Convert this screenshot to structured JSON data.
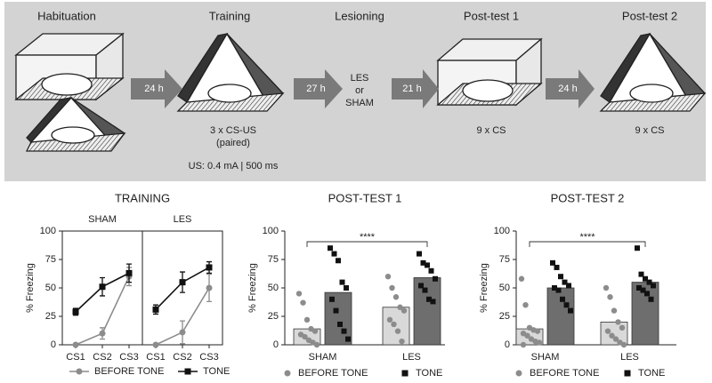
{
  "protocol": {
    "stages": [
      "Habituation",
      "Training",
      "Lesioning",
      "Post-test 1",
      "Post-test 2"
    ],
    "delays": [
      "24 h",
      "27 h",
      "21 h",
      "24 h"
    ],
    "training_notes": [
      "3 x CS-US",
      "(paired)",
      "US: 0.4 mA | 500 ms"
    ],
    "lesion_options": [
      "LES",
      "or",
      "SHAM"
    ],
    "posttest_notes": [
      "9 x CS",
      "9 x CS"
    ]
  },
  "chart_data": [
    {
      "type": "line",
      "title": "TRAINING",
      "subtitle": "SHAM",
      "ylabel": "% Freezing",
      "categories": [
        "CS1",
        "CS2",
        "CS3"
      ],
      "ylim": [
        0,
        100
      ],
      "yticks": [
        0,
        25,
        50,
        75,
        100
      ],
      "series": [
        {
          "name": "BEFORE TONE",
          "color": "#8c8c8c",
          "marker": "circle",
          "values": [
            0,
            10,
            60
          ],
          "errors": [
            0,
            5,
            8
          ]
        },
        {
          "name": "TONE",
          "color": "#111111",
          "marker": "square",
          "values": [
            29,
            51,
            63
          ],
          "errors": [
            3,
            8,
            8
          ]
        }
      ]
    },
    {
      "type": "line",
      "subtitle": "LES",
      "categories": [
        "CS1",
        "CS2",
        "CS3"
      ],
      "ylim": [
        0,
        100
      ],
      "series": [
        {
          "color": "#8c8c8c",
          "marker": "circle",
          "values": [
            0,
            11,
            50
          ],
          "errors": [
            0,
            10,
            12
          ]
        },
        {
          "color": "#111111",
          "marker": "square",
          "values": [
            31,
            55,
            68
          ],
          "errors": [
            4,
            9,
            5
          ]
        }
      ]
    },
    {
      "type": "bar",
      "title": "POST-TEST 1",
      "ylabel": "% Freezing",
      "annotation": "****",
      "categories": [
        "SHAM",
        "LES"
      ],
      "ylim": [
        0,
        100
      ],
      "yticks": [
        0,
        25,
        50,
        75,
        100
      ],
      "series": [
        {
          "name": "BEFORE TONE",
          "color": "#d9d9d9",
          "point_color": "#8c8c8c",
          "marker": "circle",
          "values": [
            14,
            33
          ],
          "points": [
            [
              45,
              37,
              22,
              14,
              12,
              9,
              7,
              4,
              2,
              0
            ],
            [
              60,
              50,
              42,
              33,
              30,
              22,
              18,
              12,
              3
            ]
          ]
        },
        {
          "name": "TONE",
          "color": "#6e6e6e",
          "point_color": "#111111",
          "marker": "square",
          "values": [
            46,
            59
          ],
          "points": [
            [
              85,
              80,
              74,
              55,
              50,
              40,
              30,
              18,
              12,
              5
            ],
            [
              80,
              72,
              70,
              65,
              58,
              52,
              48,
              40,
              38
            ]
          ]
        }
      ]
    },
    {
      "type": "bar",
      "title": "POST-TEST 2",
      "ylabel": "% Freezing",
      "annotation": "****",
      "categories": [
        "SHAM",
        "LES"
      ],
      "ylim": [
        0,
        100
      ],
      "yticks": [
        0,
        25,
        50,
        75,
        100
      ],
      "series": [
        {
          "name": "BEFORE TONE",
          "color": "#d9d9d9",
          "point_color": "#8c8c8c",
          "marker": "circle",
          "values": [
            14,
            20
          ],
          "points": [
            [
              58,
              35,
              15,
              13,
              12,
              10,
              8,
              5,
              3,
              2,
              0
            ],
            [
              50,
              42,
              30,
              20,
              15,
              12,
              8,
              5,
              2,
              0
            ]
          ]
        },
        {
          "name": "TONE",
          "color": "#6e6e6e",
          "point_color": "#111111",
          "marker": "square",
          "values": [
            50,
            55
          ],
          "points": [
            [
              72,
              68,
              60,
              55,
              52,
              50,
              48,
              40,
              35,
              30
            ],
            [
              85,
              62,
              58,
              55,
              52,
              50,
              48,
              45,
              40
            ]
          ]
        }
      ]
    }
  ]
}
